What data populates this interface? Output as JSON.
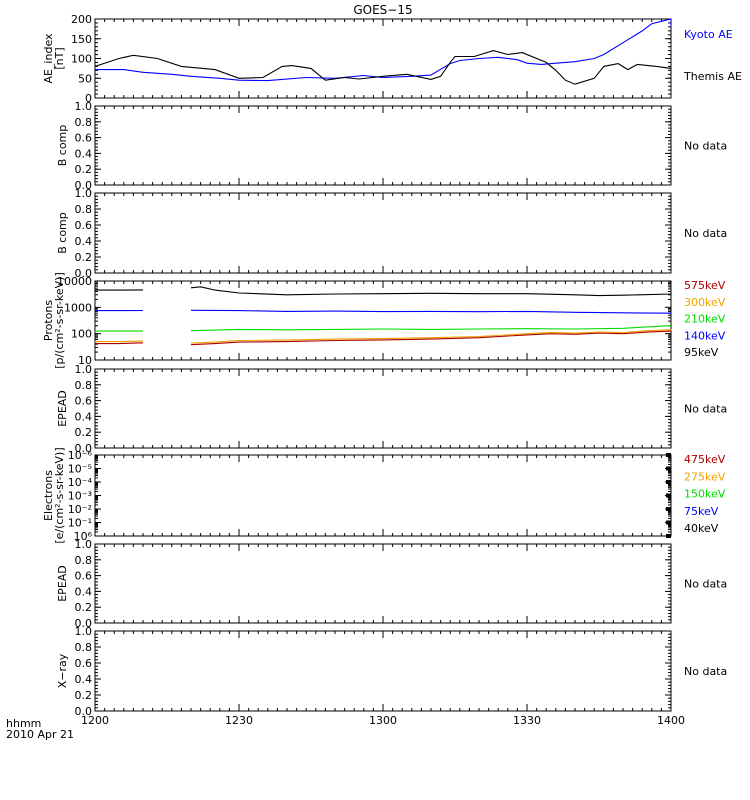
{
  "title": "GOES−15",
  "time_axis": {
    "tick_labels": [
      "1200",
      "1230",
      "1300",
      "1330",
      "1400"
    ],
    "unit_label": "hhmm",
    "date_label": "2010 Apr 21"
  },
  "colors": {
    "black": "#000000",
    "blue": "#0000ff",
    "green": "#00dd00",
    "orange": "#f0a000",
    "darkred": "#aa0000"
  },
  "chart_data": [
    {
      "type": "line",
      "panel": "ae_index",
      "ylabel": [
        "AE_index",
        "[nT]"
      ],
      "ylim": [
        0,
        200
      ],
      "yticks": [
        "0",
        "50",
        "100",
        "150",
        "200"
      ],
      "x_unit": "minutes after 1200",
      "series": [
        {
          "name": "Kyoto AE",
          "color": "#0000ff",
          "x": [
            0,
            6,
            10,
            16,
            20,
            26,
            30,
            36,
            38,
            44,
            50,
            56,
            60,
            66,
            70,
            74,
            76,
            80,
            84,
            88,
            90,
            93,
            96,
            100,
            104,
            106,
            110,
            114,
            116,
            120,
            122,
            124
          ],
          "y": [
            72,
            72,
            65,
            60,
            55,
            50,
            45,
            44,
            46,
            52,
            50,
            57,
            52,
            55,
            58,
            87,
            95,
            100,
            103,
            97,
            88,
            85,
            88,
            92,
            100,
            110,
            140,
            170,
            188,
            200,
            195,
            180
          ]
        },
        {
          "name": "Themis AE",
          "color": "#000000",
          "x": [
            0,
            5,
            8,
            13,
            18,
            25,
            30,
            35,
            39,
            41,
            45,
            47,
            48,
            52,
            55,
            60,
            65,
            70,
            72,
            74,
            75,
            79,
            83,
            86,
            89,
            94,
            96,
            98,
            100,
            104,
            106,
            109,
            111,
            113,
            117,
            120,
            124
          ],
          "y": [
            80,
            100,
            108,
            100,
            80,
            72,
            50,
            52,
            80,
            82,
            75,
            55,
            45,
            52,
            48,
            55,
            60,
            47,
            55,
            90,
            105,
            105,
            120,
            110,
            115,
            90,
            70,
            45,
            35,
            50,
            80,
            87,
            72,
            85,
            80,
            75,
            72
          ]
        }
      ]
    },
    {
      "type": "line",
      "panel": "b_comp_1",
      "ylabel": [
        "B comp"
      ],
      "ylim": [
        0,
        1
      ],
      "yticks": [
        "0.0",
        "0.2",
        "0.4",
        "0.6",
        "0.8",
        "1.0"
      ],
      "status": "No data"
    },
    {
      "type": "line",
      "panel": "b_comp_2",
      "ylabel": [
        "B comp"
      ],
      "ylim": [
        0,
        1
      ],
      "yticks": [
        "0.0",
        "0.2",
        "0.4",
        "0.6",
        "0.8",
        "1.0"
      ],
      "status": "No data"
    },
    {
      "type": "line",
      "panel": "protons",
      "ylabel": [
        "Protons",
        "[p/(cm²-s-sr-keV)]"
      ],
      "yscale": "log",
      "ylim": [
        10,
        10000
      ],
      "yticks": [
        "10",
        "100",
        "1000",
        "10000"
      ],
      "x_unit": "minutes after 1200",
      "gaps": [
        [
          10,
          20
        ]
      ],
      "series": [
        {
          "name": "575keV",
          "color": "#aa0000",
          "x": [
            0,
            5,
            10,
            20,
            25,
            30,
            40,
            50,
            60,
            70,
            80,
            90,
            95,
            100,
            105,
            110,
            115,
            120,
            124
          ],
          "y": [
            42,
            42,
            45,
            38,
            42,
            48,
            50,
            55,
            58,
            62,
            70,
            90,
            100,
            95,
            105,
            100,
            115,
            125,
            120
          ]
        },
        {
          "name": "300keV",
          "color": "#f0a000",
          "x": [
            0,
            5,
            10,
            20,
            25,
            30,
            40,
            50,
            60,
            70,
            80,
            90,
            95,
            100,
            105,
            110,
            115,
            120,
            124
          ],
          "y": [
            50,
            50,
            52,
            44,
            48,
            55,
            57,
            62,
            65,
            70,
            78,
            100,
            110,
            105,
            115,
            110,
            130,
            140,
            135
          ]
        },
        {
          "name": "210keV",
          "color": "#00dd00",
          "x": [
            0,
            10,
            20,
            30,
            40,
            50,
            60,
            70,
            80,
            90,
            100,
            110,
            115,
            120,
            124
          ],
          "y": [
            125,
            125,
            130,
            145,
            140,
            145,
            150,
            145,
            150,
            155,
            150,
            160,
            180,
            200,
            200
          ]
        },
        {
          "name": "140keV",
          "color": "#0000ff",
          "x": [
            0,
            10,
            20,
            30,
            40,
            50,
            60,
            70,
            80,
            90,
            100,
            110,
            120,
            124
          ],
          "y": [
            750,
            760,
            770,
            750,
            700,
            720,
            690,
            700,
            680,
            700,
            650,
            620,
            600,
            590
          ]
        },
        {
          "name": "95keV",
          "color": "#000000",
          "x": [
            0,
            5,
            10,
            20,
            22,
            25,
            30,
            40,
            50,
            60,
            70,
            80,
            90,
            100,
            105,
            110,
            120,
            124
          ],
          "y": [
            4500,
            4500,
            4600,
            5500,
            6000,
            4500,
            3500,
            3000,
            3200,
            3300,
            3400,
            3300,
            3300,
            3000,
            2800,
            2900,
            3200,
            3400
          ]
        }
      ]
    },
    {
      "type": "line",
      "panel": "epead_1",
      "ylabel": [
        "EPEAD"
      ],
      "ylim": [
        0,
        1
      ],
      "yticks": [
        "0.0",
        "0.2",
        "0.4",
        "0.6",
        "0.8",
        "1.0"
      ],
      "status": "No data"
    },
    {
      "type": "line",
      "panel": "electrons",
      "ylabel": [
        "Electrons",
        "[e/(cm²-s-sr-keV)]"
      ],
      "yscale": "log",
      "ylim": [
        1e-06,
        1
      ],
      "yticks": [
        "10⁶",
        "10⁻¹",
        "10⁻²",
        "10⁻³",
        "10⁻⁴",
        "10⁻⁵",
        "10⁻⁶"
      ],
      "series": [
        {
          "name": "475keV",
          "color": "#aa0000",
          "x": [],
          "y": []
        },
        {
          "name": "275keV",
          "color": "#f0a000",
          "x": [],
          "y": []
        },
        {
          "name": "150keV",
          "color": "#00dd00",
          "x": [],
          "y": []
        },
        {
          "name": "75keV",
          "color": "#0000ff",
          "x": [],
          "y": []
        },
        {
          "name": "40keV",
          "color": "#000000",
          "x": [],
          "y": []
        }
      ]
    },
    {
      "type": "line",
      "panel": "epead_2",
      "ylabel": [
        "EPEAD"
      ],
      "ylim": [
        0,
        1
      ],
      "yticks": [
        "0.0",
        "0.2",
        "0.4",
        "0.6",
        "0.8",
        "1.0"
      ],
      "status": "No data"
    },
    {
      "type": "line",
      "panel": "xray",
      "ylabel": [
        "X−ray"
      ],
      "ylim": [
        0,
        1
      ],
      "yticks": [
        "0.0",
        "0.2",
        "0.4",
        "0.6",
        "0.8",
        "1.0"
      ],
      "status": "No data"
    }
  ]
}
